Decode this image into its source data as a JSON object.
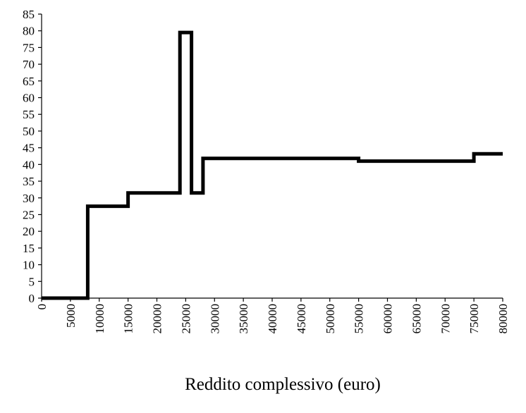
{
  "chart_data": {
    "type": "line",
    "title": "",
    "xlabel": "Reddito complessivo (euro)",
    "ylabel": "",
    "xlim": [
      0,
      80000
    ],
    "ylim": [
      0,
      85
    ],
    "grid": false,
    "line_style": "step",
    "line_color": "#000000",
    "x_ticks": [
      "0",
      "5000",
      "10000",
      "15000",
      "20000",
      "25000",
      "30000",
      "35000",
      "40000",
      "45000",
      "50000",
      "55000",
      "60000",
      "65000",
      "70000",
      "75000",
      "80000"
    ],
    "y_ticks": [
      "0",
      "5",
      "10",
      "15",
      "20",
      "25",
      "30",
      "35",
      "40",
      "45",
      "50",
      "55",
      "60",
      "65",
      "70",
      "75",
      "80",
      "85"
    ],
    "series": [
      {
        "x": [
          0,
          8000,
          8000,
          15000,
          15000,
          24000,
          24000,
          26000,
          26000,
          28000,
          28000,
          55000,
          55000,
          75000,
          75000,
          80000
        ],
        "y": [
          0,
          0,
          27.5,
          27.5,
          31.5,
          31.5,
          79.5,
          79.5,
          31.5,
          31.5,
          41.8,
          41.8,
          41.0,
          41.0,
          43.2,
          43.2
        ]
      }
    ]
  }
}
